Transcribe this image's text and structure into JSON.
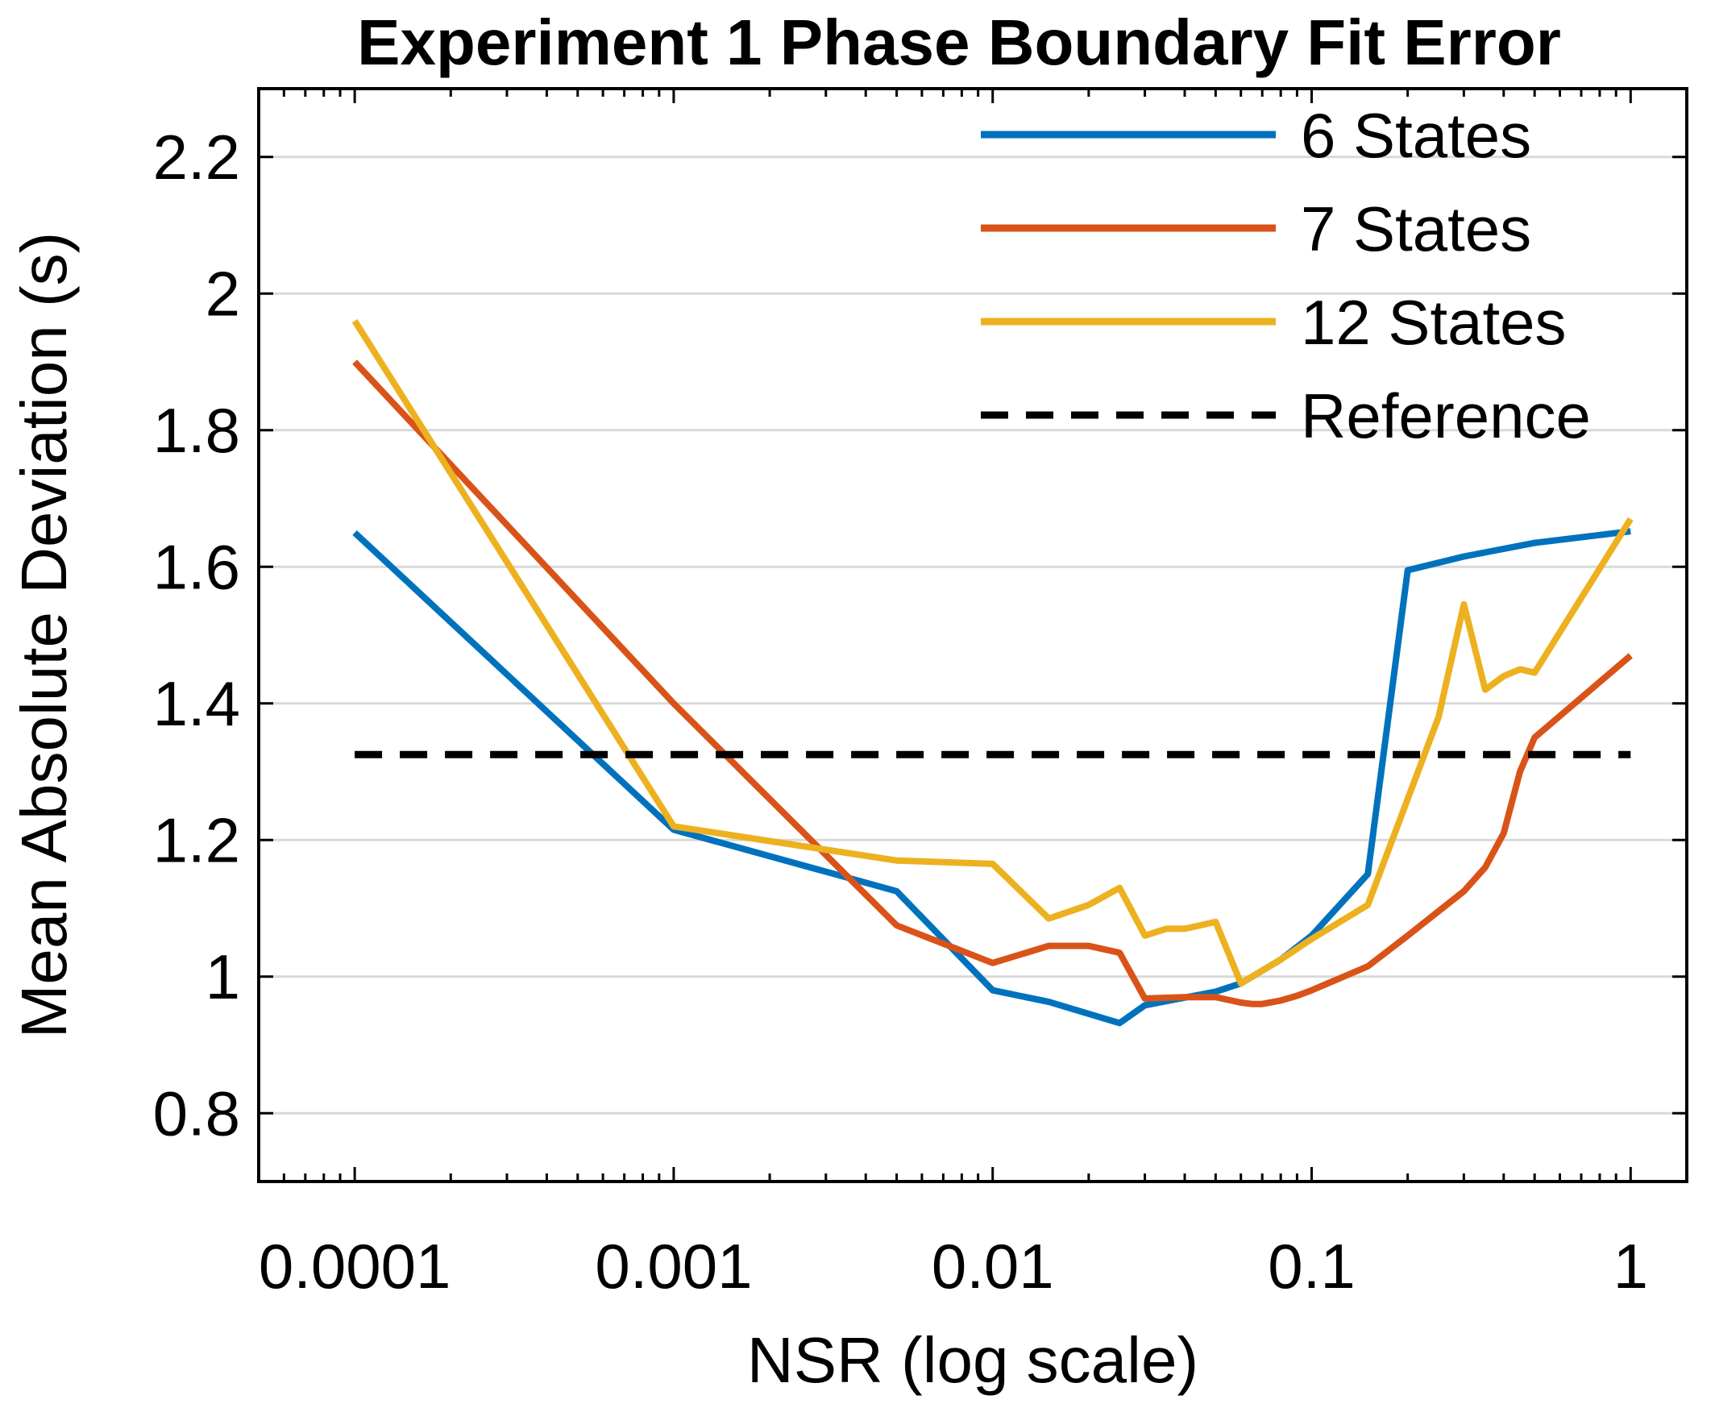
{
  "chart_data": {
    "type": "line",
    "title": "Experiment 1 Phase Boundary Fit Error",
    "xlabel": "NSR (log scale)",
    "ylabel": "Mean Absolute Deviation (s)",
    "x_scale": "log",
    "xlim": [
      5e-05,
      1.5
    ],
    "ylim": [
      0.7,
      2.3
    ],
    "x_ticks": [
      0.0001,
      0.001,
      0.01,
      0.1,
      1
    ],
    "x_tick_labels": [
      "0.0001",
      "0.001",
      "0.01",
      "0.1",
      "1"
    ],
    "y_ticks": [
      0.8,
      1,
      1.2,
      1.4,
      1.6,
      1.8,
      2,
      2.2
    ],
    "y_tick_labels": [
      "0.8",
      "1",
      "1.2",
      "1.4",
      "1.6",
      "1.8",
      "2",
      "2.2"
    ],
    "grid": "horizontal",
    "legend_position": "top-right",
    "series": [
      {
        "name": "6 States",
        "color": "#0072BD",
        "x": [
          0.0001,
          0.001,
          0.005,
          0.01,
          0.015,
          0.025,
          0.03,
          0.05,
          0.06,
          0.08,
          0.1,
          0.15,
          0.2,
          0.3,
          0.5,
          1
        ],
        "y": [
          1.65,
          1.215,
          1.125,
          0.98,
          0.963,
          0.932,
          0.958,
          0.978,
          0.99,
          1.025,
          1.06,
          1.15,
          1.595,
          1.615,
          1.635,
          1.652
        ]
      },
      {
        "name": "7 States",
        "color": "#D95319",
        "x": [
          0.0001,
          0.001,
          0.005,
          0.01,
          0.015,
          0.02,
          0.025,
          0.03,
          0.04,
          0.05,
          0.06,
          0.065,
          0.07,
          0.08,
          0.09,
          0.1,
          0.15,
          0.2,
          0.3,
          0.35,
          0.4,
          0.45,
          0.5,
          1
        ],
        "y": [
          1.9,
          1.4,
          1.075,
          1.02,
          1.045,
          1.045,
          1.035,
          0.968,
          0.97,
          0.97,
          0.962,
          0.96,
          0.96,
          0.965,
          0.972,
          0.98,
          1.015,
          1.06,
          1.125,
          1.16,
          1.21,
          1.3,
          1.35,
          1.47
        ]
      },
      {
        "name": "12 States",
        "color": "#EDB120",
        "x": [
          0.0001,
          0.001,
          0.005,
          0.01,
          0.015,
          0.02,
          0.025,
          0.03,
          0.035,
          0.04,
          0.05,
          0.06,
          0.08,
          0.1,
          0.15,
          0.25,
          0.3,
          0.35,
          0.4,
          0.45,
          0.5,
          1
        ],
        "y": [
          1.96,
          1.22,
          1.17,
          1.165,
          1.085,
          1.105,
          1.13,
          1.06,
          1.07,
          1.07,
          1.08,
          0.99,
          1.025,
          1.055,
          1.105,
          1.38,
          1.545,
          1.42,
          1.44,
          1.45,
          1.445,
          1.67
        ]
      },
      {
        "name": "Reference",
        "color": "#000000",
        "dashed": true,
        "x": [
          0.0001,
          1
        ],
        "y": [
          1.325,
          1.325
        ]
      }
    ]
  }
}
